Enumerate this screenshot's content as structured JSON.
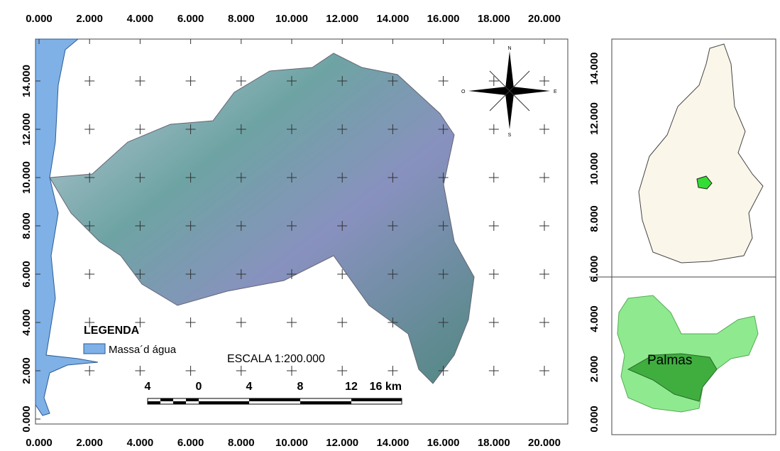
{
  "main_map": {
    "x_labels": [
      "0.000",
      "2.000",
      "4.000",
      "6.000",
      "8.000",
      "10.000",
      "12.000",
      "14.000",
      "16.000",
      "18.000",
      "20.000"
    ],
    "y_labels": [
      "0.000",
      "2.000",
      "4.000",
      "6.000",
      "8.000",
      "10.000",
      "12.000",
      "14.000"
    ],
    "compass": {
      "north": "N",
      "south": "S",
      "east": "E",
      "west": "O"
    },
    "legend": {
      "title": "LEGENDA",
      "items": [
        "Massa´d água"
      ]
    },
    "scale": {
      "title": "ESCALA 1:200.000",
      "labels": [
        "4",
        "0",
        "4",
        "8",
        "12",
        "16 km"
      ]
    }
  },
  "inset": {
    "y_labels": [
      "0.000",
      "2.000",
      "4.000",
      "6.000",
      "8.000",
      "10.000",
      "12.000",
      "14.000"
    ],
    "place_label": "Palmas"
  }
}
